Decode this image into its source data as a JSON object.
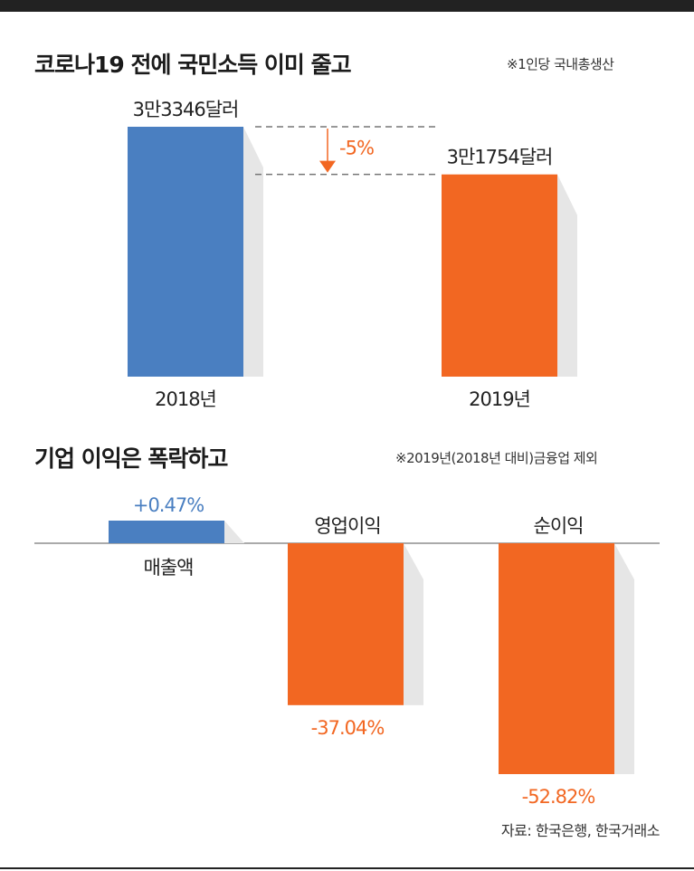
{
  "chart_data": [
    {
      "type": "bar",
      "title": "코로나19 전에 국민소득 이미 줄고",
      "note": "※1인당 국내총생산",
      "categories": [
        "2018년",
        "2019년"
      ],
      "values": [
        33346,
        31754
      ],
      "value_labels": [
        "3만3346달러",
        "3만1754달러"
      ],
      "change_label": "-5%",
      "colors": [
        "#4a7fc1",
        "#f26722"
      ]
    },
    {
      "type": "bar",
      "title": "기업 이익은 폭락하고",
      "note": "※2019년(2018년 대비)금융업 제외",
      "categories": [
        "매출액",
        "영업이익",
        "순이익"
      ],
      "values": [
        0.47,
        -37.04,
        -52.82
      ],
      "value_labels": [
        "+0.47%",
        "-37.04%",
        "-52.82%"
      ],
      "colors": [
        "#4a7fc1",
        "#f26722",
        "#f26722"
      ]
    }
  ],
  "source": "자료: 한국은행, 한국거래소",
  "colors": {
    "blue": "#4a7fc1",
    "orange": "#f26722",
    "dash": "#777777",
    "text": "#222222"
  }
}
